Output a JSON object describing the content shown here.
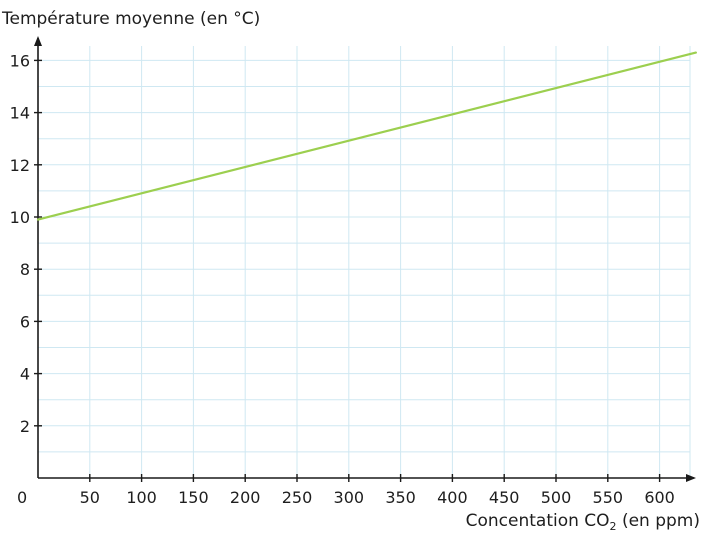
{
  "chart_data": {
    "type": "line",
    "title": "",
    "ylabel": "Température moyenne (en °C)",
    "xlabel": {
      "before": "Concentation CO",
      "subscript": "2",
      "after": " (en ppm)"
    },
    "xlim": [
      0,
      635
    ],
    "ylim": [
      0,
      17
    ],
    "x_ticks": [
      50,
      100,
      150,
      200,
      250,
      300,
      350,
      400,
      450,
      500,
      550,
      600
    ],
    "x_tick_labels": [
      "50",
      "100",
      "150",
      "200",
      "250",
      "300",
      "350",
      "400",
      "450",
      "500",
      "550",
      "600"
    ],
    "y_ticks": [
      2,
      4,
      6,
      8,
      10,
      12,
      14,
      16
    ],
    "y_tick_labels": [
      "2",
      "4",
      "6",
      "8",
      "10",
      "12",
      "14",
      "16"
    ],
    "origin_label": "0",
    "grid": true,
    "series": [
      {
        "x": [
          0,
          635
        ],
        "y": [
          9.9,
          16.3
        ],
        "color": "#9ccf4f"
      }
    ],
    "colors": {
      "grid": "#cfe8f2",
      "axis": "#1a1a1a"
    }
  }
}
